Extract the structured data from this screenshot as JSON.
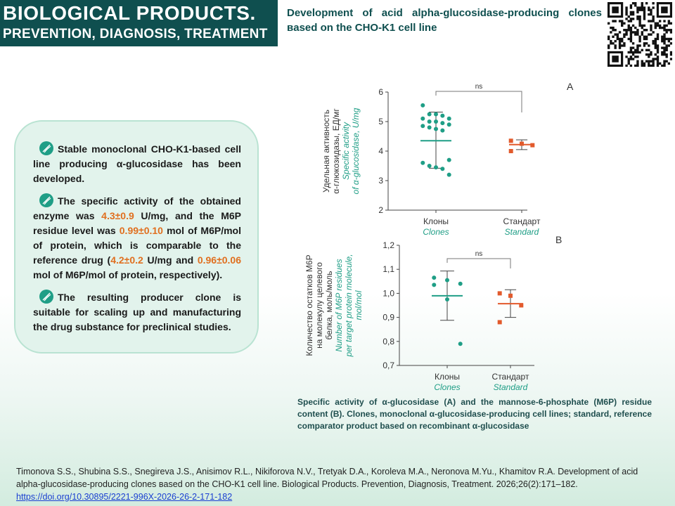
{
  "header": {
    "journal_line1": "BIOLOGICAL PRODUCTS.",
    "journal_line2": "PREVENTION, DIAGNOSIS, TREATMENT",
    "article_title": "Development of acid alpha-glucosidase-producing clones вased on the CHO-K1 cell line",
    "qr_icon": "qr-code-icon"
  },
  "summary": {
    "p1": "Stable monoclonal CHO-K1-based cell line producing α-glucosidase has been developed.",
    "p2_a": "The specific activity of the obtained enzyme was ",
    "p2_h1": "4.3±0.9",
    "p2_b": " U/mg, and the M6P residue level was ",
    "p2_h2": "0.99±0.10",
    "p2_c": " mol of M6P/mol of protein, which is comparable to the reference drug (",
    "p2_h3": "4.2±0.2",
    "p2_d": " U/mg and ",
    "p2_h4": "0.96±0.06",
    "p2_e": " mol of M6P/mol of protein, respectively).",
    "p3": "The resulting producer clone is suitable for scaling up and manufacturing the drug substance for preclinical studies.",
    "bullet_icon": "dna-icon",
    "accent": "#e06f1f"
  },
  "chart_data": [
    {
      "type": "scatter",
      "panel_label": "A",
      "ylabel_ru": [
        "Удельная активность",
        "α-глюкозидазы, ЕД/мг"
      ],
      "ylabel_en": [
        "Specific activity",
        "of α-glucosidase, U/mg"
      ],
      "ylim": [
        2,
        6
      ],
      "yticks": [
        "2",
        "3",
        "4",
        "5",
        "6"
      ],
      "categories_ru": [
        "Клоны",
        "Стандарт"
      ],
      "categories_en": [
        "Clones",
        "Standard"
      ],
      "significance": "ns",
      "series": [
        {
          "color": "#1f9e86",
          "points": [
            5.55,
            5.25,
            5.25,
            5.2,
            5.1,
            5.1,
            5.0,
            5.0,
            4.95,
            4.9,
            4.85,
            4.8,
            4.75,
            4.7,
            3.7,
            3.6,
            3.5,
            3.45,
            3.4,
            3.2
          ],
          "mean": 4.35,
          "sd_low": 3.42,
          "sd_high": 5.32
        },
        {
          "color": "#e25a2c",
          "points": [
            4.35,
            4.25,
            4.2,
            4.0
          ],
          "mean": 4.22,
          "sd_low": 4.05,
          "sd_high": 4.38
        }
      ]
    },
    {
      "type": "scatter",
      "panel_label": "B",
      "ylabel_ru": [
        "Количество остатков М6Р",
        "на молекулу целевого",
        "белка, моль/моль"
      ],
      "ylabel_en": [
        "Number of M6P residues",
        "per target protein molecule,",
        "mol/mol"
      ],
      "ylim": [
        0.7,
        1.2
      ],
      "yticks": [
        "0,7",
        "0,8",
        "0,9",
        "1,0",
        "1,1",
        "1,2"
      ],
      "categories_ru": [
        "Клоны",
        "Стандарт"
      ],
      "categories_en": [
        "Clones",
        "Standard"
      ],
      "significance": "ns",
      "series": [
        {
          "color": "#1f9e86",
          "points": [
            1.065,
            1.055,
            1.04,
            1.035,
            0.975,
            0.79
          ],
          "mean": 0.99,
          "sd_low": 0.888,
          "sd_high": 1.093
        },
        {
          "color": "#e25a2c",
          "points": [
            1.0,
            0.99,
            0.95,
            0.88
          ],
          "mean": 0.957,
          "sd_low": 0.9,
          "sd_high": 1.015
        }
      ]
    }
  ],
  "caption": "Specific activity of α-glucosidase (A) and the mannose-6-phosphate (M6P) residue content (B). Clones, monoclonal α-glucosidase-producing cell lines; standard, reference comparator product based on recombinant α-glucosidase",
  "citation": {
    "text": "Timonova S.S., Shubina S.S., Snegireva J.S., Anisimov R.L., Nikiforova N.V., Tretyak D.A., Koroleva M.A., Neronova M.Yu., Khamitov R.A. Development of acid alpha-glucosidase-producing clones вased on the CHO-K1 cell line. Biological Products. Prevention, Diagnosis, Treatment. 2026;26(2):171–182.",
    "doi": "https://doi.org/10.30895/2221-996X-2026-26-2-171-182"
  }
}
